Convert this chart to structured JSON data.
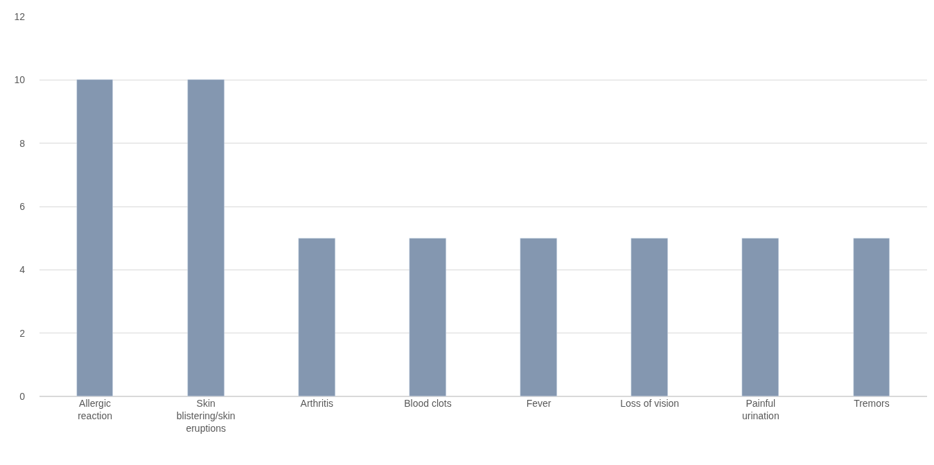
{
  "chart_data": {
    "type": "bar",
    "categories": [
      "Allergic reaction",
      "Skin blistering/skin eruptions",
      "Arthritis",
      "Blood clots",
      "Fever",
      "Loss of vision",
      "Painful urination",
      "Tremors"
    ],
    "values": [
      10,
      10,
      5,
      5,
      5,
      5,
      5,
      5
    ],
    "color": "#8497b0",
    "ylim": [
      0,
      12
    ],
    "yticks": [
      0,
      2,
      4,
      6,
      8,
      10,
      12
    ],
    "grid": "y",
    "legend": false
  }
}
